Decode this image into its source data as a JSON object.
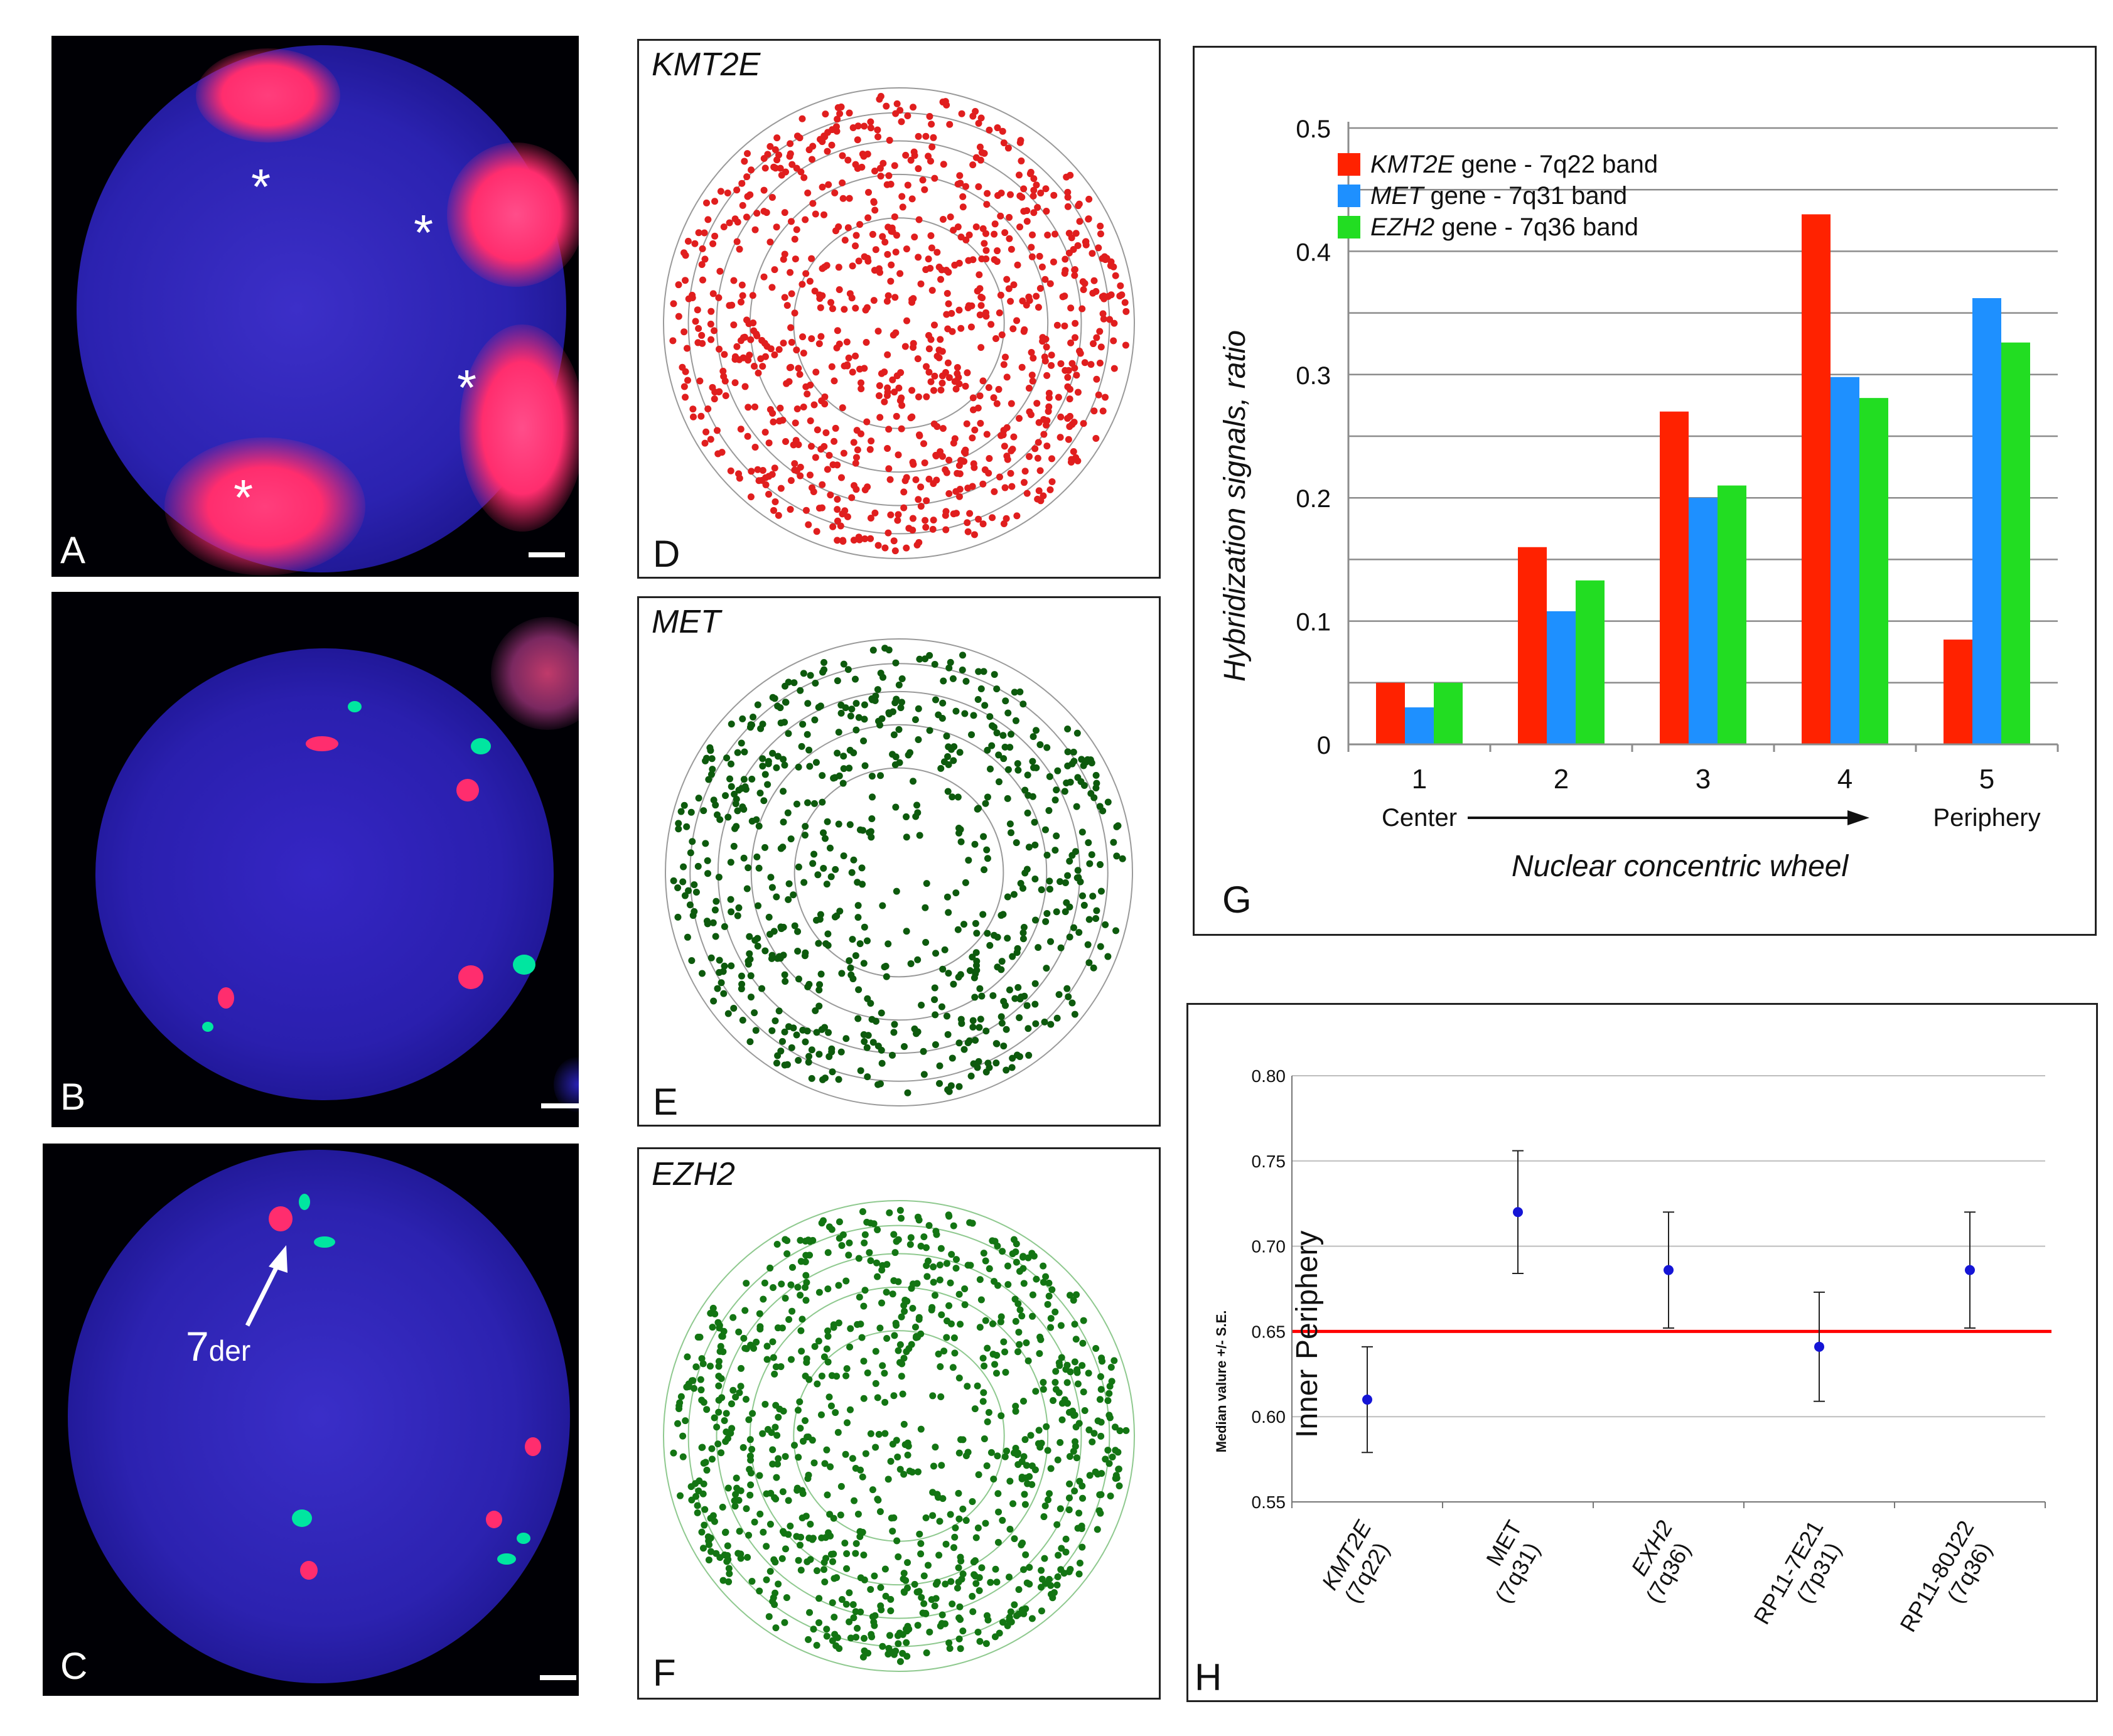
{
  "panels": {
    "A": {
      "letter": "A",
      "marker": "*"
    },
    "B": {
      "letter": "B"
    },
    "C": {
      "letter": "C",
      "arrow_main": "7",
      "arrow_sub": "der"
    },
    "D": {
      "letter": "D",
      "gene": "KMT2E",
      "dot_color": "#e01e1e"
    },
    "E": {
      "letter": "E",
      "gene": "MET",
      "dot_color": "#0d5a0d"
    },
    "F": {
      "letter": "F",
      "gene": "EZH2",
      "dot_color": "#137513"
    },
    "G": {
      "letter": "G"
    },
    "H": {
      "letter": "H"
    }
  },
  "colors": {
    "nucleus": "#1e1ea8",
    "fish_red": "#ff2d6e",
    "fish_green": "#00e6a0",
    "threshold": "#ff0000",
    "point": "#1515d6"
  },
  "chart_data": [
    {
      "id": "G",
      "type": "bar",
      "categories": [
        "1",
        "2",
        "3",
        "4",
        "5"
      ],
      "category_sublabels": [
        "Center",
        "",
        "",
        "",
        "Periphery"
      ],
      "series": [
        {
          "name_italic": "KMT2E",
          "name_rest": " gene - 7q22 band",
          "color": "#ff2200",
          "values": [
            0.05,
            0.16,
            0.27,
            0.43,
            0.085
          ]
        },
        {
          "name_italic": "MET",
          "name_rest": " gene - 7q31 band",
          "color": "#1e90ff",
          "values": [
            0.03,
            0.108,
            0.2,
            0.298,
            0.362
          ]
        },
        {
          "name_italic": "EZH2",
          "name_rest": " gene - 7q36 band",
          "color": "#22dd22",
          "values": [
            0.05,
            0.133,
            0.21,
            0.281,
            0.326
          ]
        }
      ],
      "ylim": [
        0,
        0.5
      ],
      "yticks": [
        0,
        0.1,
        0.2,
        0.3,
        0.4,
        0.5
      ],
      "ytick_labels": [
        "0",
        "0.1",
        "0.2",
        "0.3",
        "0.4",
        "0.5"
      ],
      "ylabel": "Hybridization signals, ratio",
      "xlabel": "Nuclear concentric wheel",
      "legend_position": "top-left"
    },
    {
      "id": "H",
      "type": "scatter",
      "categories": [
        "KMT2E\n(7q22)",
        "MET\n(7q31)",
        "EXH2\n(7q36)",
        "RP11-7E21\n(7p31)",
        "RP11-80J22\n(7q36)"
      ],
      "category_lines": [
        [
          "KMT2E",
          "(7q22)"
        ],
        [
          "MET",
          "(7q31)"
        ],
        [
          "EXH2",
          "(7q36)"
        ],
        [
          "RP11-7E21",
          "(7p31)"
        ],
        [
          "RP11-80J22",
          "(7q36)"
        ]
      ],
      "category_italic": [
        true,
        false,
        true,
        false,
        false
      ],
      "values": [
        0.61,
        0.72,
        0.686,
        0.641,
        0.686
      ],
      "errors": [
        0.031,
        0.036,
        0.034,
        0.032,
        0.034
      ],
      "ylim": [
        0.55,
        0.8
      ],
      "yticks": [
        0.55,
        0.6,
        0.65,
        0.7,
        0.75,
        0.8
      ],
      "ytick_labels": [
        "0.55",
        "0.60",
        "0.65",
        "0.70",
        "0.75",
        "0.80"
      ],
      "ylabel": "Median valure +/- S.E.",
      "threshold": 0.65,
      "region_labels": {
        "above": "Periphery",
        "below": "Inner"
      }
    }
  ]
}
